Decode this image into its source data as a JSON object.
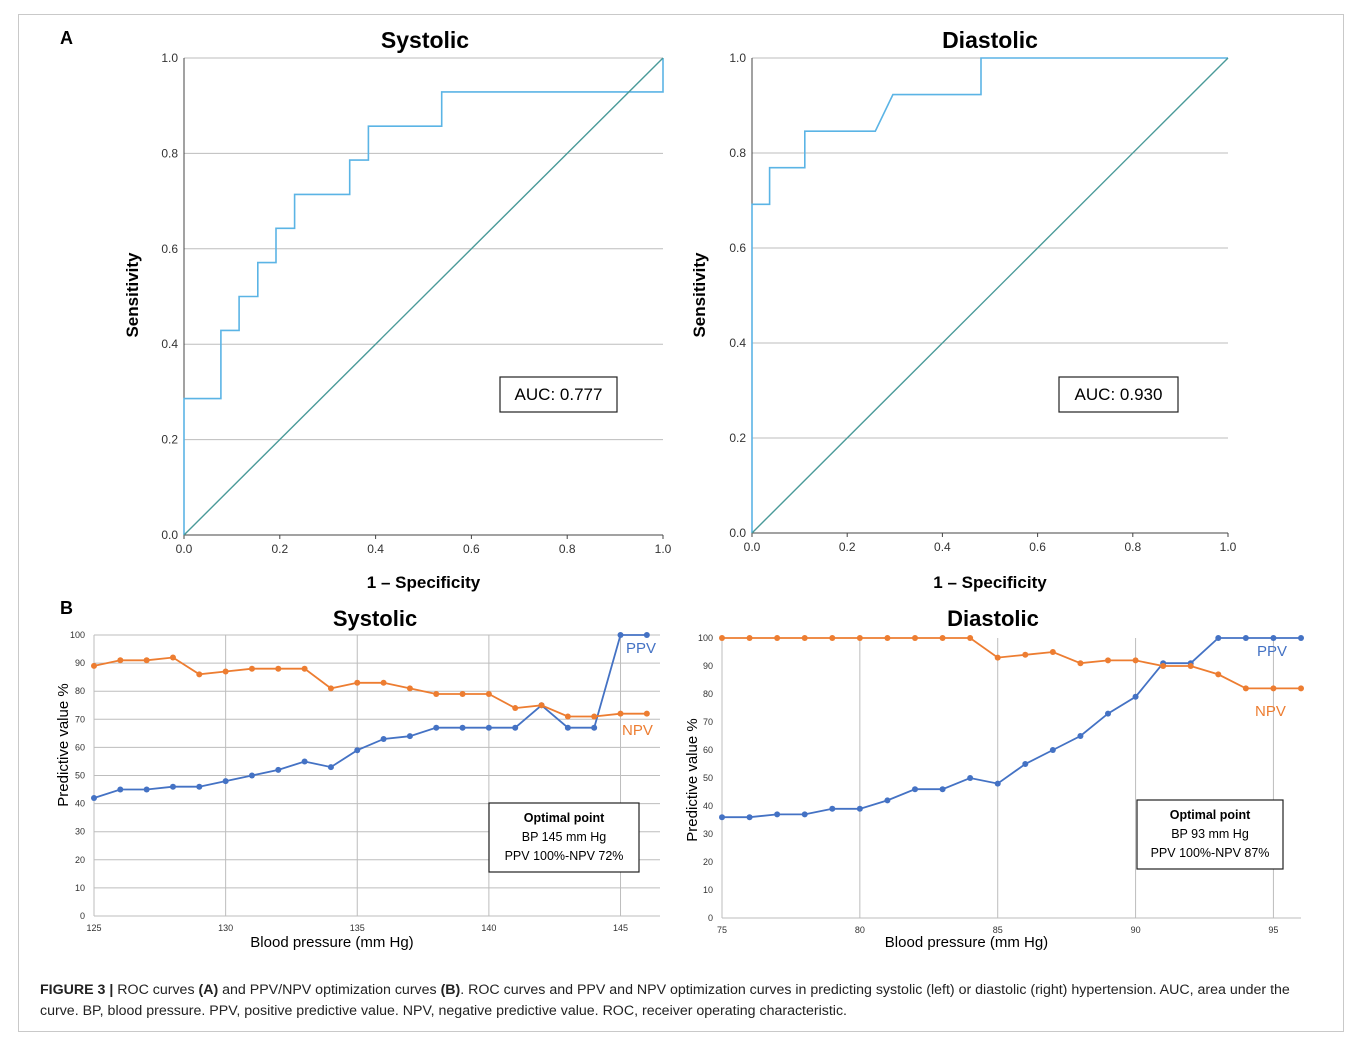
{
  "panels": {
    "a_label": "A",
    "b_label": "B"
  },
  "caption": {
    "figure_label": "FIGURE 3 |",
    "p1": " ROC curves ",
    "p2": "(A)",
    "p3": " and PPV/NPV optimization curves ",
    "p4": "(B)",
    "p5": ". ROC curves and PPV and NPV optimization curves in predicting systolic (left) or diastolic (right) hypertension. AUC, area under the curve. BP, blood pressure. PPV, positive predictive value. NPV, negative predictive value. ROC, receiver operating characteristic."
  },
  "colors": {
    "roc_curve": "#5bb4e5",
    "reference_line": "#4a9a99",
    "grid": "#bdbdbd",
    "ppv": "#4472c4",
    "npv": "#ed7d31"
  },
  "chart_data": [
    {
      "id": "roc-systolic",
      "type": "line",
      "title": "Systolic",
      "xlabel": "1 – Specificity",
      "ylabel": "Sensitivity",
      "xlim": [
        0,
        1
      ],
      "ylim": [
        0,
        1
      ],
      "xticks": [
        "0.0",
        "0.2",
        "0.4",
        "0.6",
        "0.8",
        "1.0"
      ],
      "yticks": [
        "0.0",
        "0.2",
        "0.4",
        "0.6",
        "0.8",
        "1.0"
      ],
      "grid": "horizontal",
      "annotation": "AUC: 0.777",
      "series": [
        {
          "role": "roc",
          "x": [
            0,
            0,
            0.077,
            0.077,
            0.115,
            0.115,
            0.154,
            0.154,
            0.192,
            0.192,
            0.231,
            0.231,
            0.346,
            0.346,
            0.385,
            0.385,
            0.538,
            0.538,
            1.0,
            1.0
          ],
          "y": [
            0,
            0.286,
            0.286,
            0.429,
            0.429,
            0.5,
            0.5,
            0.571,
            0.571,
            0.643,
            0.643,
            0.714,
            0.714,
            0.786,
            0.786,
            0.857,
            0.857,
            0.929,
            0.929,
            1.0
          ]
        },
        {
          "role": "reference",
          "x": [
            0,
            1
          ],
          "y": [
            0,
            1
          ]
        }
      ]
    },
    {
      "id": "roc-diastolic",
      "type": "line",
      "title": "Diastolic",
      "xlabel": "1 – Specificity",
      "ylabel": "Sensitivity",
      "xlim": [
        0,
        1
      ],
      "ylim": [
        0,
        1
      ],
      "xticks": [
        "0.0",
        "0.2",
        "0.4",
        "0.6",
        "0.8",
        "1.0"
      ],
      "yticks": [
        "0.0",
        "0.2",
        "0.4",
        "0.6",
        "0.8",
        "1.0"
      ],
      "grid": "horizontal",
      "annotation": "AUC: 0.930",
      "series": [
        {
          "role": "roc",
          "x": [
            0,
            0,
            0.037,
            0.037,
            0.111,
            0.111,
            0.259,
            0.296,
            0.481,
            0.481,
            1.0
          ],
          "y": [
            0,
            0.692,
            0.692,
            0.769,
            0.769,
            0.846,
            0.846,
            0.923,
            0.923,
            1.0,
            1.0
          ]
        },
        {
          "role": "reference",
          "x": [
            0,
            1
          ],
          "y": [
            0,
            1
          ]
        }
      ]
    },
    {
      "id": "pv-systolic",
      "type": "line",
      "title": "Systolic",
      "xlabel": "Blood pressure (mm Hg)",
      "ylabel": "Predictive value %",
      "xlim": [
        125,
        146.5
      ],
      "ylim": [
        0,
        100
      ],
      "xticks": [
        125,
        130,
        135,
        140,
        145
      ],
      "yticks": [
        0,
        10,
        20,
        30,
        40,
        50,
        60,
        70,
        80,
        90,
        100
      ],
      "grid": "both",
      "box": [
        "Optimal point",
        "BP 145 mm Hg",
        "PPV 100%-NPV 72%"
      ],
      "x": [
        125,
        126,
        127,
        128,
        129,
        130,
        131,
        132,
        133,
        134,
        135,
        136,
        137,
        138,
        139,
        140,
        141,
        142,
        143,
        144,
        145,
        146
      ],
      "series": [
        {
          "name": "PPV",
          "values": [
            42,
            45,
            45,
            46,
            46,
            48,
            50,
            52,
            55,
            53,
            59,
            63,
            64,
            67,
            67,
            67,
            67,
            75,
            67,
            67,
            100,
            100
          ]
        },
        {
          "name": "NPV",
          "values": [
            89,
            91,
            91,
            92,
            86,
            87,
            88,
            88,
            88,
            81,
            83,
            83,
            81,
            79,
            79,
            79,
            74,
            75,
            71,
            71,
            72,
            72
          ]
        }
      ]
    },
    {
      "id": "pv-diastolic",
      "type": "line",
      "title": "Diastolic",
      "xlabel": "Blood pressure (mm Hg)",
      "ylabel": "Predictive value %",
      "xlim": [
        75,
        96
      ],
      "ylim": [
        0,
        100
      ],
      "xticks": [
        75,
        80,
        85,
        90,
        95
      ],
      "yticks": [
        0,
        10,
        20,
        30,
        40,
        50,
        60,
        70,
        80,
        90,
        100
      ],
      "grid": "vertical",
      "box": [
        "Optimal point",
        "BP 93 mm Hg",
        "PPV 100%-NPV 87%"
      ],
      "x": [
        75,
        76,
        77,
        78,
        79,
        80,
        81,
        82,
        83,
        84,
        85,
        86,
        87,
        88,
        89,
        90,
        91,
        92,
        93,
        94,
        95,
        96
      ],
      "series": [
        {
          "name": "PPV",
          "values": [
            36,
            36,
            37,
            37,
            39,
            39,
            42,
            46,
            46,
            50,
            48,
            55,
            60,
            65,
            73,
            79,
            91,
            91,
            100,
            100,
            100,
            100
          ]
        },
        {
          "name": "NPV",
          "values": [
            100,
            100,
            100,
            100,
            100,
            100,
            100,
            100,
            100,
            100,
            93,
            94,
            95,
            91,
            92,
            92,
            90,
            90,
            87,
            82,
            82,
            82
          ]
        }
      ]
    }
  ]
}
